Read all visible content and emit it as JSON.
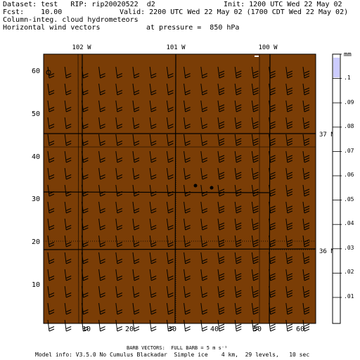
{
  "header": {
    "dataset_line": "Dataset: test   RIP: rip20020522  d2",
    "init_line": "Init: 1200 UTC Wed 22 May 02",
    "fcst_line": "Fcst:    10.00",
    "valid_line": "Valid: 2200 UTC Wed 22 May 02 (1700 CDT Wed 22 May 02)",
    "field_line": "Column-integ. cloud hydrometeors",
    "vector_line": "Horizontal wind vectors",
    "pressure_line": "at pressure =  850 hPa"
  },
  "map": {
    "background_color": "#7a3d06",
    "x_ticks": [
      "10",
      "20",
      "30",
      "40",
      "50",
      "60"
    ],
    "y_ticks": [
      "10",
      "20",
      "30",
      "40",
      "50",
      "60"
    ],
    "longitude_labels": [
      "102 W",
      "101 W",
      "100 W"
    ],
    "latitude_labels": [
      "37 N",
      "36 N"
    ],
    "station_dots": 2
  },
  "colorbar": {
    "unit": "mm",
    "labels": [
      ".1",
      ".09",
      ".08",
      ".07",
      ".06",
      ".05",
      ".04",
      ".03",
      ".02",
      ".01"
    ],
    "highlight_color": "#ccccff"
  },
  "footer": {
    "barb_line": "BARB VECTORS:  FULL BARB = 5 m s⁻¹",
    "model_line": "Model info: V3.5.0 No Cumulus Blackadar  Simple ice    4 km,  29 levels,   10 sec"
  }
}
